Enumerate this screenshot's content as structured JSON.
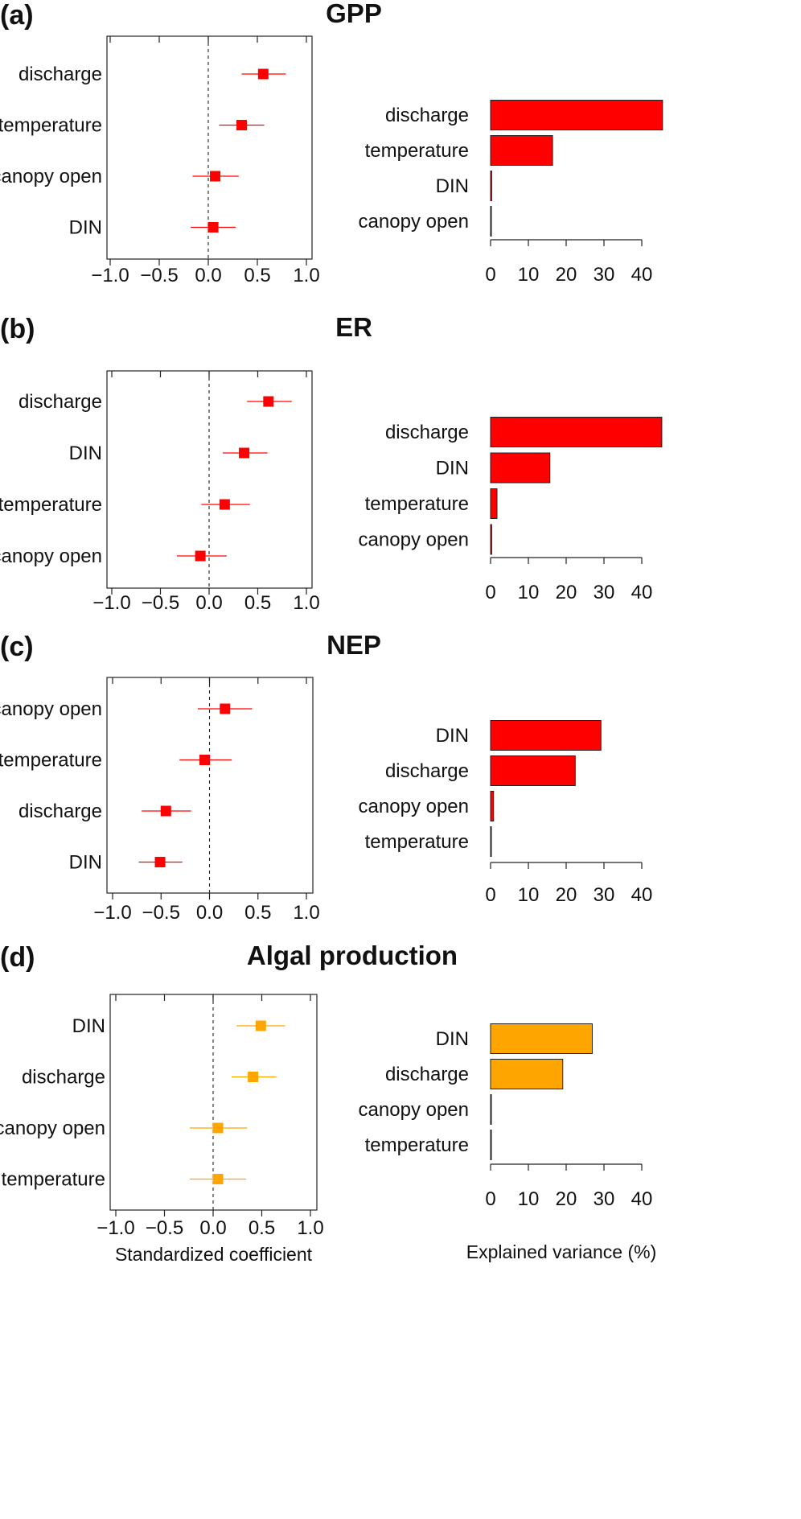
{
  "colors": {
    "red": "#ff0000",
    "orange": "#ffa500"
  },
  "chart_data": [
    {
      "letter": "(a)",
      "title": "GPP",
      "color": "#ff0000",
      "coef": {
        "type": "scatter",
        "categories": [
          "discharge",
          "temperature",
          "canopy open",
          "DIN"
        ],
        "estimate": [
          0.56,
          0.34,
          0.07,
          0.05
        ],
        "lower": [
          0.34,
          0.11,
          -0.16,
          -0.18
        ],
        "upper": [
          0.79,
          0.57,
          0.31,
          0.28
        ],
        "xlim": [
          -1.1,
          1.1
        ],
        "ticks": [
          "−1.0",
          "−0.5",
          "0.0",
          "0.5",
          "1.0"
        ]
      },
      "variance": {
        "type": "bar",
        "categories": [
          "discharge",
          "temperature",
          "DIN",
          "canopy open"
        ],
        "values": [
          45.5,
          16.4,
          0.3,
          0.2
        ],
        "ticks": [
          "0",
          "10",
          "20",
          "30",
          "40"
        ]
      }
    },
    {
      "letter": "(b)",
      "title": "ER",
      "color": "#ff0000",
      "coef": {
        "type": "scatter",
        "categories": [
          "discharge",
          "DIN",
          "temperature",
          "canopy open"
        ],
        "estimate": [
          0.61,
          0.36,
          0.16,
          -0.09
        ],
        "lower": [
          0.39,
          0.14,
          -0.08,
          -0.33
        ],
        "upper": [
          0.85,
          0.6,
          0.42,
          0.18
        ],
        "xlim": [
          -1.1,
          1.1
        ],
        "ticks": [
          "−1.0",
          "−0.5",
          "0.0",
          "0.5",
          "1.0"
        ]
      },
      "variance": {
        "type": "bar",
        "categories": [
          "discharge",
          "DIN",
          "temperature",
          "canopy open"
        ],
        "values": [
          45.3,
          15.7,
          1.7,
          0.3
        ],
        "ticks": [
          "0",
          "10",
          "20",
          "30",
          "40"
        ]
      }
    },
    {
      "letter": "(c)",
      "title": "NEP",
      "color": "#ff0000",
      "coef": {
        "type": "scatter",
        "categories": [
          "canopy open",
          "temperature",
          "discharge",
          "DIN"
        ],
        "estimate": [
          0.16,
          -0.05,
          -0.45,
          -0.51
        ],
        "lower": [
          -0.12,
          -0.31,
          -0.7,
          -0.73
        ],
        "upper": [
          0.44,
          0.23,
          -0.19,
          -0.28
        ],
        "xlim": [
          -1.1,
          1.1
        ],
        "ticks": [
          "−1.0",
          "−0.5",
          "0.0",
          "0.5",
          "1.0"
        ]
      },
      "variance": {
        "type": "bar",
        "categories": [
          "DIN",
          "discharge",
          "canopy open",
          "temperature"
        ],
        "values": [
          29.2,
          22.4,
          0.8,
          0.2
        ],
        "ticks": [
          "0",
          "10",
          "20",
          "30",
          "40"
        ]
      }
    },
    {
      "letter": "(d)",
      "title": "Algal production",
      "color": "#ffa500",
      "coef": {
        "type": "scatter",
        "categories": [
          "DIN",
          "discharge",
          "canopy open",
          "temperature"
        ],
        "estimate": [
          0.49,
          0.41,
          0.05,
          0.05
        ],
        "lower": [
          0.24,
          0.19,
          -0.24,
          -0.24
        ],
        "upper": [
          0.74,
          0.65,
          0.35,
          0.34
        ],
        "xlim": [
          -1.1,
          1.1
        ],
        "ticks": [
          "−1.0",
          "−0.5",
          "0.0",
          "0.5",
          "1.0"
        ],
        "xlabel": "Standardized coefficient"
      },
      "variance": {
        "type": "bar",
        "categories": [
          "DIN",
          "discharge",
          "canopy open",
          "temperature"
        ],
        "values": [
          26.9,
          19.1,
          0.2,
          0.2
        ],
        "ticks": [
          "0",
          "10",
          "20",
          "30",
          "40"
        ],
        "xlabel": "Explained variance (%)"
      }
    }
  ]
}
